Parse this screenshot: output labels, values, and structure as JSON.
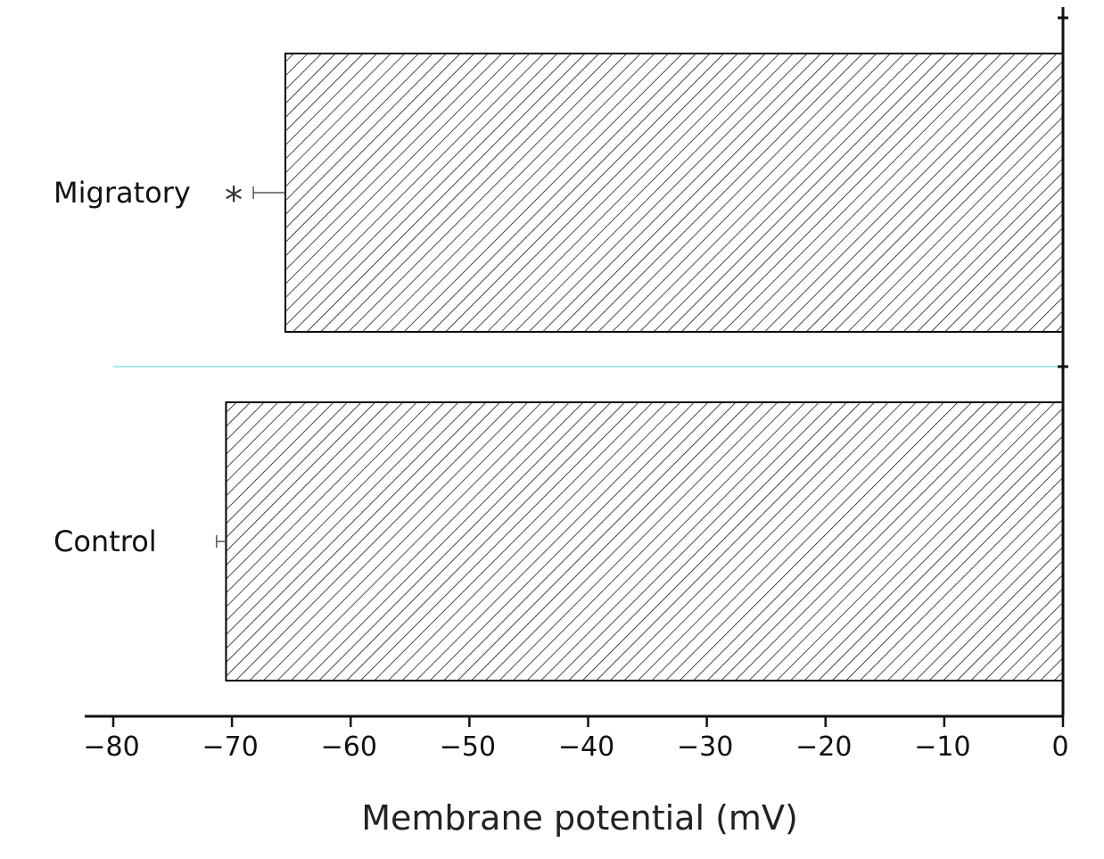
{
  "chart_data": {
    "type": "bar",
    "orientation": "horizontal",
    "categories": [
      "Migratory",
      "Control"
    ],
    "values": [
      -65.5,
      -70.5
    ],
    "errors": [
      2.7,
      0.8
    ],
    "significance": [
      "*",
      ""
    ],
    "xlabel": "Membrane potential (mV)",
    "xlim": [
      -80,
      0
    ],
    "xticks": [
      -80,
      -70,
      -60,
      -50,
      -40,
      -30,
      -20,
      -10,
      0
    ],
    "xtick_labels": [
      "−80",
      "−70",
      "−60",
      "−50",
      "−40",
      "−30",
      "−20",
      "−10",
      "0"
    ],
    "bar_fill": "diagonal-hatch",
    "bar_color": "#000000",
    "separator_color": "#8fe3ec",
    "grid": false
  }
}
